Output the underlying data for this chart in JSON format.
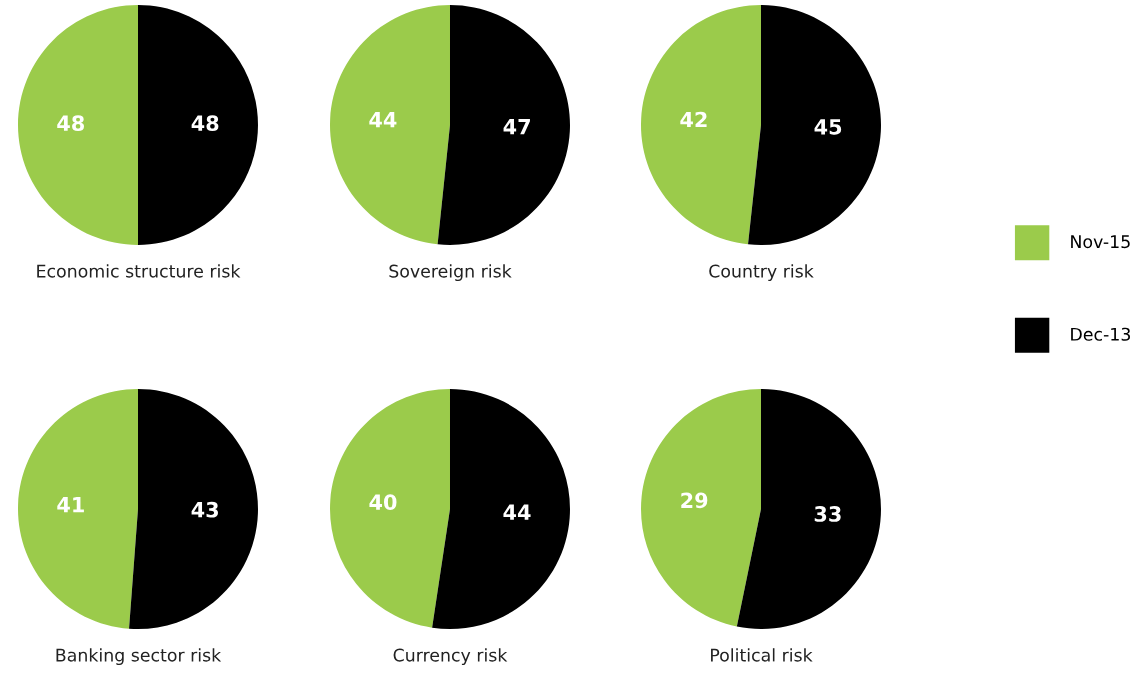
{
  "chart_data": [
    {
      "type": "pie",
      "title": "Economic structure risk",
      "categories": [
        "Nov-15",
        "Dec-13"
      ],
      "values": [
        48,
        48
      ],
      "colors": [
        "#9bcb4b",
        "#000000"
      ],
      "data_labels": true,
      "legend": "right"
    },
    {
      "type": "pie",
      "title": "Sovereign risk",
      "categories": [
        null,
        null
      ],
      "values": [
        44,
        47
      ],
      "colors": [
        "#9bcb4b",
        "#000000"
      ],
      "data_labels": true
    },
    {
      "type": "pie",
      "title": "Country risk",
      "categories": [
        null,
        null
      ],
      "values": [
        42,
        45
      ],
      "colors": [
        "#9bcb4b",
        "#000000"
      ],
      "data_labels": true
    },
    {
      "type": "pie",
      "title": "Banking sector risk",
      "categories": [
        null,
        null
      ],
      "values": [
        41,
        43
      ],
      "colors": [
        "#9bcb4b",
        "#000000"
      ],
      "data_labels": true
    },
    {
      "type": "pie",
      "title": "Currency risk",
      "categories": [
        null,
        null
      ],
      "values": [
        40,
        44
      ],
      "colors": [
        "#9bcb4b",
        "#000000"
      ],
      "data_labels": true
    },
    {
      "type": "pie",
      "title": "Political risk",
      "categories": [
        null,
        null
      ],
      "values": [
        29,
        33
      ],
      "colors": [
        "#9bcb4b",
        "#000000"
      ],
      "data_labels": true
    }
  ]
}
